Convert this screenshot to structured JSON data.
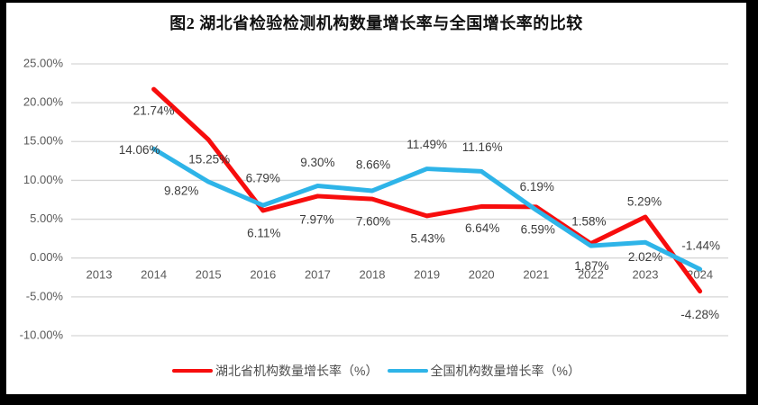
{
  "title": "图2  湖北省检验检测机构数量增长率与全国增长率的比较",
  "colors": {
    "hubei": "#f70d0d",
    "national": "#2eb4e8",
    "grid": "#d6d6d6",
    "axis_text": "#595959",
    "label_text": "#3d3d3d",
    "border": "#000000",
    "panel_bg": "#ffffff"
  },
  "legend": {
    "hubei_label": "湖北省机构数量增长率（%）",
    "national_label": "全国机构数量增长率（%）"
  },
  "chart_data": {
    "type": "line",
    "title": "图2  湖北省检验检测机构数量增长率与全国增长率的比较",
    "categories": [
      "2013",
      "2014",
      "2015",
      "2016",
      "2017",
      "2018",
      "2019",
      "2020",
      "2021",
      "2022",
      "2023",
      "2024"
    ],
    "y_ticks": [
      "25.00%",
      "20.00%",
      "15.00%",
      "10.00%",
      "5.00%",
      "0.00%",
      "-5.00%",
      "-10.00%"
    ],
    "ylim": [
      -10,
      25
    ],
    "grid": true,
    "legend_position": "bottom",
    "series": [
      {
        "name": "湖北省机构数量增长率（%）",
        "color_key": "hubei",
        "start_index": 1,
        "x": [
          "2014",
          "2015",
          "2016",
          "2017",
          "2018",
          "2019",
          "2020",
          "2021",
          "2022",
          "2023",
          "2024"
        ],
        "values": [
          21.74,
          15.25,
          6.11,
          7.97,
          7.6,
          5.43,
          6.64,
          6.59,
          1.87,
          5.29,
          -4.28
        ],
        "labels": [
          "21.74%",
          "15.25%",
          "6.11%",
          "7.97%",
          "7.60%",
          "5.43%",
          "6.64%",
          "6.59%",
          "1,87%",
          "5.29%",
          "-4.28%"
        ],
        "label_offsets": [
          [
            0,
            25
          ],
          [
            1,
            23
          ],
          [
            1,
            26
          ],
          [
            -1,
            27
          ],
          [
            1,
            26
          ],
          [
            1,
            26
          ],
          [
            1,
            25
          ],
          [
            2,
            26
          ],
          [
            1,
            26
          ],
          [
            -1,
            -16
          ],
          [
            0,
            27
          ]
        ]
      },
      {
        "name": "全国机构数量增长率（%）",
        "color_key": "national",
        "start_index": 1,
        "x": [
          "2014",
          "2015",
          "2016",
          "2017",
          "2018",
          "2019",
          "2020",
          "2021",
          "2022",
          "2023",
          "2024"
        ],
        "values": [
          14.06,
          9.82,
          6.79,
          9.3,
          8.66,
          11.49,
          11.16,
          6.19,
          1.58,
          2.02,
          -1.44
        ],
        "labels": [
          "14.06%",
          "9.82%",
          "6.79%",
          "9.30%",
          "8.66%",
          "11.49%",
          "11.16%",
          "6.19%",
          "1.58%",
          "2.02%",
          "-1.44%"
        ],
        "label_offsets": [
          [
            -16,
            2
          ],
          [
            -30,
            11
          ],
          [
            0,
            -29
          ],
          [
            0,
            -25
          ],
          [
            1,
            -28
          ],
          [
            0,
            -26
          ],
          [
            1,
            -26
          ],
          [
            1,
            -25
          ],
          [
            -2,
            -26
          ],
          [
            0,
            17
          ],
          [
            1,
            -25
          ]
        ]
      }
    ]
  }
}
